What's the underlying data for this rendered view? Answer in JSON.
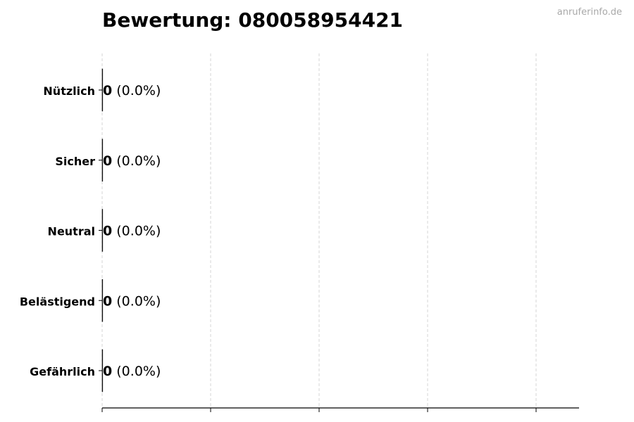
{
  "watermark": "anruferinfo.de",
  "chart_data": {
    "type": "bar",
    "orientation": "horizontal",
    "title": "Bewertung: 080058954421",
    "categories": [
      "Nützlich",
      "Sicher",
      "Neutral",
      "Belästigend",
      "Gefährlich"
    ],
    "values": [
      0,
      0,
      0,
      0,
      0
    ],
    "percentages": [
      "0.0%",
      "0.0%",
      "0.0%",
      "0.0%",
      "0.0%"
    ],
    "xlabel": "",
    "ylabel": "",
    "x_tick_labels_shown": false,
    "grid": "vertical dashed",
    "colors": {
      "bar_edge": "#000000",
      "grid": "#cccccc",
      "watermark": "#a8a8a8"
    }
  }
}
